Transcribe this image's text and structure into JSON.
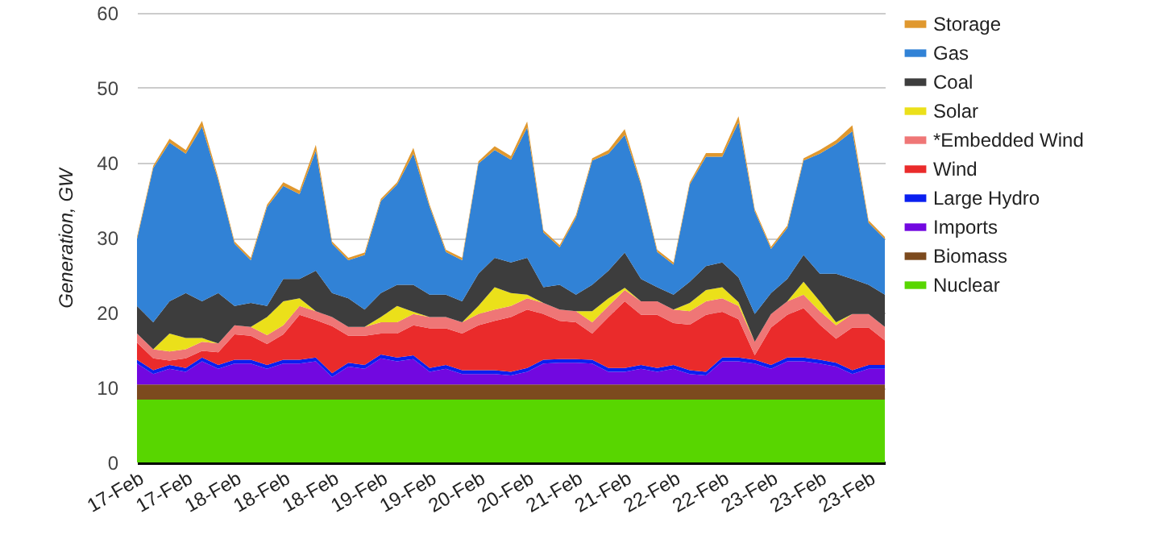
{
  "chart_data": {
    "type": "area",
    "stacked": true,
    "ylabel": "Generation, GW",
    "ylim": [
      0,
      60
    ],
    "yticks": [
      0,
      10,
      20,
      30,
      40,
      50,
      60
    ],
    "grid": "y",
    "legend": "right",
    "categories": [
      "17-Feb",
      null,
      null,
      "17-Feb",
      null,
      null,
      "18-Feb",
      null,
      null,
      "18-Feb",
      null,
      null,
      "18-Feb",
      null,
      null,
      "19-Feb",
      null,
      null,
      "19-Feb",
      null,
      null,
      "20-Feb",
      null,
      null,
      "20-Feb",
      null,
      null,
      "21-Feb",
      null,
      null,
      "21-Feb",
      null,
      null,
      "22-Feb",
      null,
      null,
      "22-Feb",
      null,
      null,
      "23-Feb",
      null,
      null,
      "23-Feb",
      null,
      null,
      "23-Feb",
      null
    ],
    "series": [
      {
        "name": "Nuclear",
        "color": "#58d600",
        "values": [
          8.4,
          8.4,
          8.4,
          8.4,
          8.4,
          8.4,
          8.4,
          8.4,
          8.4,
          8.4,
          8.4,
          8.4,
          8.4,
          8.4,
          8.4,
          8.4,
          8.4,
          8.4,
          8.4,
          8.4,
          8.4,
          8.4,
          8.4,
          8.4,
          8.4,
          8.4,
          8.4,
          8.4,
          8.4,
          8.4,
          8.4,
          8.4,
          8.4,
          8.4,
          8.4,
          8.4,
          8.4,
          8.4,
          8.4,
          8.4,
          8.4,
          8.4,
          8.4,
          8.4,
          8.4,
          8.4,
          8.4
        ]
      },
      {
        "name": "Biomass",
        "color": "#7c4a1e",
        "values": [
          2.0,
          2.0,
          2.0,
          2.0,
          2.0,
          2.0,
          2.0,
          2.0,
          2.0,
          2.0,
          2.0,
          2.0,
          2.0,
          2.0,
          2.0,
          2.0,
          2.0,
          2.0,
          2.0,
          2.0,
          2.0,
          2.0,
          2.0,
          2.0,
          2.0,
          2.0,
          2.0,
          2.0,
          2.0,
          2.0,
          2.0,
          2.0,
          2.0,
          2.0,
          2.0,
          2.0,
          2.0,
          2.0,
          2.0,
          2.0,
          2.0,
          2.0,
          2.0,
          2.0,
          2.0,
          2.0,
          2.0
        ]
      },
      {
        "name": "Imports",
        "color": "#7208e0",
        "values": [
          2.8,
          1.4,
          2.1,
          1.7,
          3.1,
          2.1,
          2.8,
          2.8,
          2.1,
          2.8,
          2.8,
          3.1,
          1.0,
          2.4,
          2.1,
          3.5,
          3.1,
          3.4,
          1.7,
          2.1,
          1.4,
          1.4,
          1.4,
          1.2,
          1.7,
          2.8,
          2.9,
          2.9,
          2.8,
          1.7,
          1.7,
          2.1,
          1.7,
          2.1,
          1.4,
          1.2,
          3.1,
          3.1,
          2.8,
          2.1,
          3.1,
          3.1,
          2.8,
          2.4,
          1.4,
          2.1,
          2.1
        ]
      },
      {
        "name": "Large Hydro",
        "color": "#0a1ff0",
        "values": [
          0.5,
          0.5,
          0.5,
          0.5,
          0.5,
          0.5,
          0.5,
          0.5,
          0.5,
          0.5,
          0.5,
          0.5,
          0.5,
          0.5,
          0.5,
          0.5,
          0.5,
          0.5,
          0.5,
          0.5,
          0.5,
          0.5,
          0.5,
          0.5,
          0.5,
          0.5,
          0.5,
          0.5,
          0.5,
          0.5,
          0.5,
          0.5,
          0.5,
          0.5,
          0.5,
          0.5,
          0.5,
          0.5,
          0.5,
          0.5,
          0.5,
          0.5,
          0.5,
          0.5,
          0.5,
          0.5,
          0.5
        ]
      },
      {
        "name": "Wind",
        "color": "#ea2b2b",
        "values": [
          2.3,
          1.6,
          0.6,
          1.3,
          0.9,
          1.7,
          3.4,
          3.2,
          2.8,
          3.4,
          6.0,
          5.0,
          6.3,
          3.6,
          3.9,
          2.8,
          3.2,
          4.0,
          5.3,
          4.9,
          4.9,
          6.0,
          6.6,
          7.3,
          7.8,
          6.1,
          5.1,
          4.9,
          3.5,
          6.8,
          8.9,
          6.7,
          7.1,
          5.6,
          6.1,
          7.6,
          6.1,
          5.1,
          0.6,
          5.0,
          5.7,
          6.6,
          4.7,
          3.2,
          5.7,
          5.0,
          3.3
        ]
      },
      {
        "name": "*Embedded Wind",
        "color": "#ef7676",
        "values": [
          1.2,
          1.2,
          1.2,
          1.2,
          1.2,
          1.2,
          1.2,
          1.2,
          1.2,
          1.2,
          1.2,
          1.2,
          1.2,
          1.2,
          1.2,
          1.5,
          1.5,
          1.5,
          1.5,
          1.5,
          1.5,
          1.5,
          1.5,
          1.5,
          1.5,
          1.5,
          1.5,
          1.5,
          1.5,
          1.5,
          1.5,
          1.8,
          1.8,
          1.8,
          1.8,
          1.8,
          1.8,
          1.8,
          1.8,
          1.8,
          1.8,
          1.8,
          1.8,
          1.8,
          1.8,
          1.8,
          1.8
        ]
      },
      {
        "name": "Solar",
        "color": "#ebe01a",
        "values": [
          0,
          0,
          2.4,
          1.5,
          0.5,
          0,
          0,
          0,
          2.4,
          3.2,
          1.0,
          0,
          0,
          0,
          0,
          0.7,
          2.2,
          0.3,
          0,
          0,
          0,
          1.1,
          3.0,
          1.7,
          0.5,
          0,
          0,
          0,
          1.5,
          1.0,
          0.3,
          0,
          0,
          0,
          1.1,
          1.5,
          1.5,
          0.5,
          0,
          0,
          0,
          1.7,
          1.3,
          0.4,
          0,
          0,
          0
        ]
      },
      {
        "name": "Coal",
        "color": "#3d3d3d",
        "values": [
          3.7,
          3.6,
          4.3,
          6.0,
          4.9,
          6.7,
          2.6,
          3.2,
          1.5,
          3.0,
          2.6,
          5.4,
          3.2,
          3.8,
          2.3,
          3.2,
          2.8,
          3.6,
          3.0,
          3.0,
          2.8,
          4.3,
          3.9,
          4.1,
          4.9,
          2.1,
          3.3,
          2.2,
          3.5,
          3.7,
          4.7,
          3.0,
          1.9,
          2.0,
          2.8,
          3.2,
          3.3,
          3.3,
          3.7,
          2.8,
          3.0,
          3.6,
          3.7,
          6.5,
          4.7,
          3.9,
          4.3
        ]
      },
      {
        "name": "Gas",
        "color": "#3182d6",
        "values": [
          8.9,
          20.6,
          21.2,
          18.6,
          23.3,
          15.1,
          8.3,
          5.7,
          13.2,
          12.4,
          11.3,
          16.0,
          6.6,
          5.1,
          7.3,
          12.3,
          13.4,
          17.5,
          11.7,
          5.7,
          5.5,
          14.7,
          14.4,
          13.7,
          17.4,
          7.3,
          5.0,
          10.3,
          16.6,
          15.6,
          15.7,
          12.6,
          4.7,
          4.0,
          13.0,
          14.6,
          14.1,
          20.7,
          13.7,
          5.9,
          6.8,
          12.6,
          16.0,
          17.3,
          19.7,
          8.3,
          7.4
        ]
      },
      {
        "name": "Storage",
        "color": "#e0982e",
        "values": [
          0.3,
          0.3,
          0.5,
          0.5,
          0.8,
          0.3,
          0.3,
          0.3,
          0.3,
          0.5,
          0.5,
          0.8,
          0.3,
          0.3,
          0.3,
          0.3,
          0.3,
          0.8,
          0.3,
          0.3,
          0.3,
          0.3,
          0.5,
          0.5,
          0.8,
          0.3,
          0.3,
          0.3,
          0.3,
          0.5,
          0.8,
          0.3,
          0.3,
          0.3,
          0.3,
          0.5,
          0.5,
          0.8,
          0.3,
          0.3,
          0.3,
          0.3,
          0.5,
          0.5,
          0.8,
          0.3,
          0.3
        ]
      }
    ]
  }
}
